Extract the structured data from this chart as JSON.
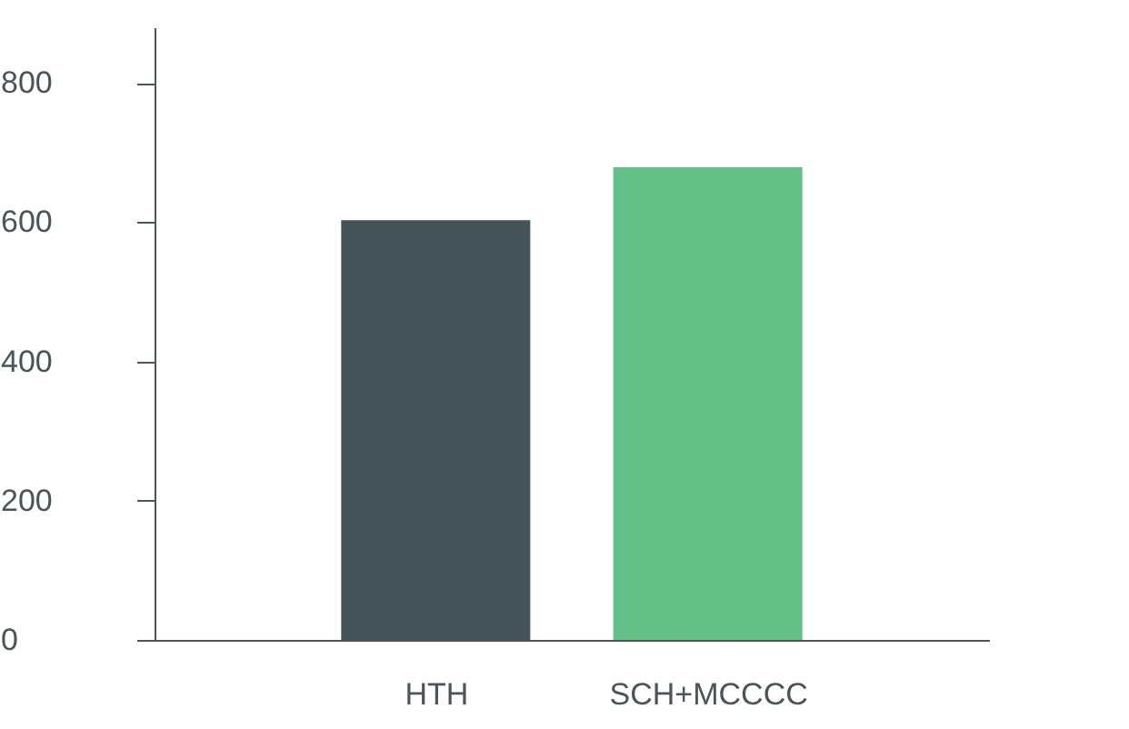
{
  "chart_data": {
    "type": "bar",
    "categories": [
      "HTH",
      "SCH+MCCCC"
    ],
    "values": [
      603,
      679
    ],
    "colors": [
      "#435357",
      "#63c087"
    ],
    "ylim": [
      0,
      880
    ],
    "yticks": [
      0,
      200,
      400,
      600,
      800
    ],
    "grid": false
  }
}
